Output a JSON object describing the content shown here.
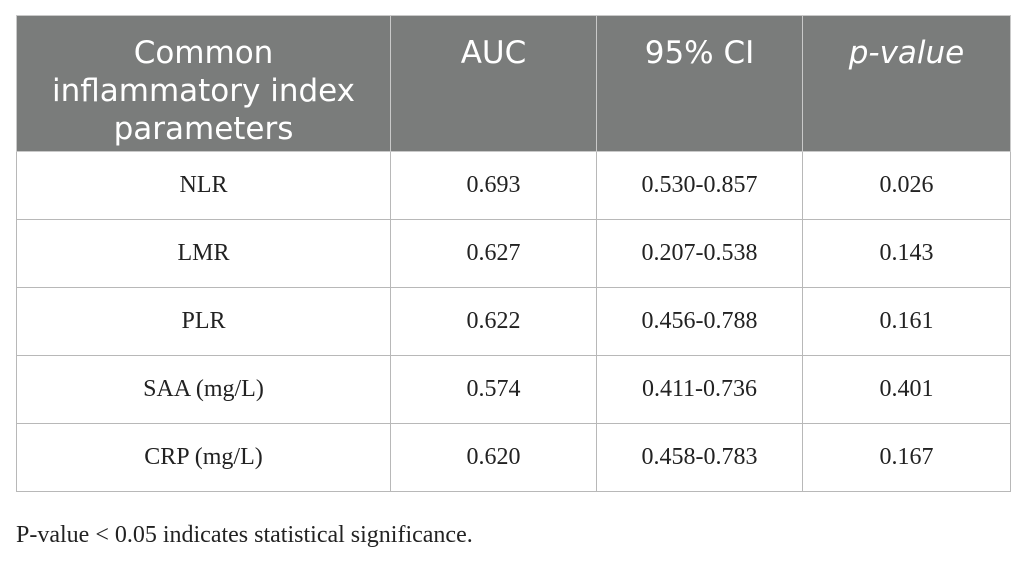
{
  "table": {
    "headers": [
      "Common inflammatory index parameters",
      "AUC",
      "95% CI",
      "p-value"
    ],
    "rows": [
      [
        "NLR",
        "0.693",
        "0.530-0.857",
        "0.026"
      ],
      [
        "LMR",
        "0.627",
        "0.207-0.538",
        "0.143"
      ],
      [
        "PLR",
        "0.622",
        "0.456-0.788",
        "0.161"
      ],
      [
        "SAA (mg/L)",
        "0.574",
        "0.411-0.736",
        "0.401"
      ],
      [
        "CRP (mg/L)",
        "0.620",
        "0.458-0.783",
        "0.167"
      ]
    ]
  },
  "footnote": "P-value < 0.05 indicates statistical significance.",
  "colors": {
    "header_background": "#7a7c7b",
    "header_text": "#ffffff"
  }
}
